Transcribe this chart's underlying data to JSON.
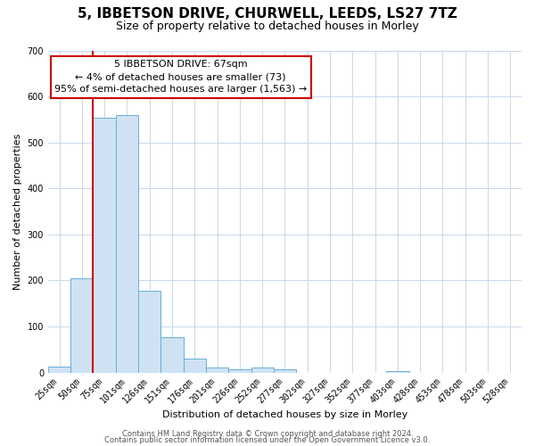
{
  "title": "5, IBBETSON DRIVE, CHURWELL, LEEDS, LS27 7TZ",
  "subtitle": "Size of property relative to detached houses in Morley",
  "xlabel": "Distribution of detached houses by size in Morley",
  "ylabel": "Number of detached properties",
  "bar_labels": [
    "25sqm",
    "50sqm",
    "75sqm",
    "101sqm",
    "126sqm",
    "151sqm",
    "176sqm",
    "201sqm",
    "226sqm",
    "252sqm",
    "277sqm",
    "302sqm",
    "327sqm",
    "352sqm",
    "377sqm",
    "403sqm",
    "428sqm",
    "453sqm",
    "478sqm",
    "503sqm",
    "528sqm"
  ],
  "bar_values": [
    12,
    204,
    554,
    560,
    178,
    76,
    30,
    10,
    6,
    10,
    6,
    0,
    0,
    0,
    0,
    4,
    0,
    0,
    0,
    0,
    0
  ],
  "bar_color": "#cfe2f3",
  "bar_edge_color": "#6baed6",
  "ylim": [
    0,
    700
  ],
  "yticks": [
    0,
    100,
    200,
    300,
    400,
    500,
    600,
    700
  ],
  "vline_color": "#cc0000",
  "annotation_line1": "5 IBBETSON DRIVE: 67sqm",
  "annotation_line2": "← 4% of detached houses are smaller (73)",
  "annotation_line3": "95% of semi-detached houses are larger (1,563) →",
  "annotation_box_color": "#ffffff",
  "annotation_border_color": "#cc0000",
  "footer1": "Contains HM Land Registry data © Crown copyright and database right 2024.",
  "footer2": "Contains public sector information licensed under the Open Government Licence v3.0.",
  "bg_color": "#ffffff",
  "grid_color": "#c8d8ea",
  "title_fontsize": 11,
  "subtitle_fontsize": 9,
  "axis_label_fontsize": 8,
  "tick_fontsize": 7,
  "annotation_fontsize": 8,
  "footer_fontsize": 6
}
